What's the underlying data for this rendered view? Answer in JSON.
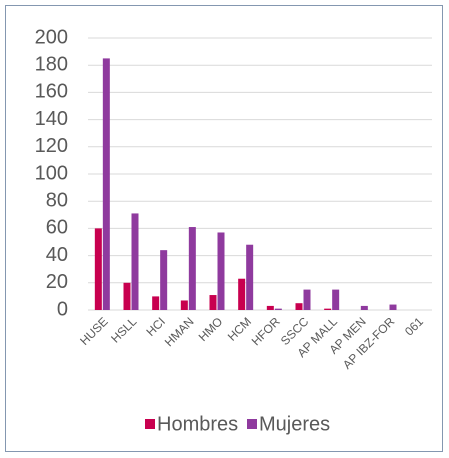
{
  "chart_data": {
    "type": "bar",
    "categories": [
      "HUSE",
      "HSLL",
      "HCI",
      "HMAN",
      "HMO",
      "HCM",
      "HFOR",
      "SSCC",
      "AP MALL",
      "AP MEN",
      "AP IBZ-FOR",
      "061"
    ],
    "series": [
      {
        "name": "Hombres",
        "color": "#c8004f",
        "values": [
          60,
          20,
          10,
          7,
          11,
          23,
          3,
          5,
          1,
          0,
          0,
          0
        ]
      },
      {
        "name": "Mujeres",
        "color": "#8f3a9e",
        "values": [
          185,
          71,
          44,
          61,
          57,
          48,
          1,
          15,
          15,
          3,
          4,
          0
        ]
      }
    ],
    "ylim": [
      0,
      200
    ],
    "yticks": [
      0,
      20,
      40,
      60,
      80,
      100,
      120,
      140,
      160,
      180,
      200
    ],
    "grid": true,
    "legend": "bottom"
  }
}
